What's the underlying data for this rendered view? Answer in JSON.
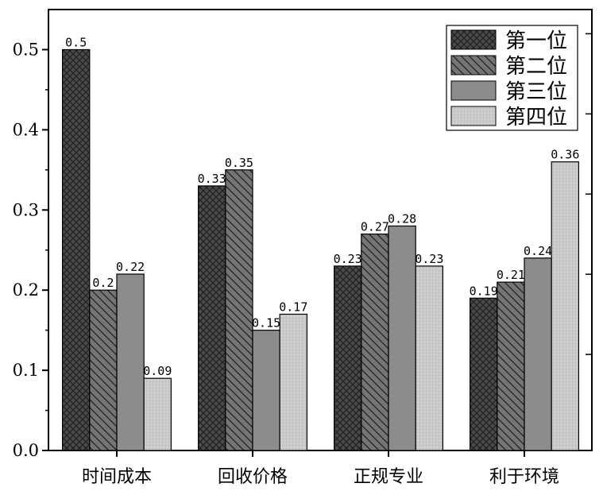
{
  "chart_data": {
    "type": "bar",
    "categories": [
      "时间成本",
      "回收价格",
      "正规专业",
      "利于环境"
    ],
    "series": [
      {
        "name": "第一位",
        "values": [
          0.5,
          0.33,
          0.23,
          0.19
        ],
        "labels": [
          "0.5",
          "0.33",
          "0.23",
          "0.19"
        ],
        "pattern": "crosshatch",
        "color": "#4a4a4a"
      },
      {
        "name": "第二位",
        "values": [
          0.2,
          0.35,
          0.27,
          0.21
        ],
        "labels": [
          "0.2",
          "0.35",
          "0.27",
          "0.21"
        ],
        "pattern": "diagonal",
        "color": "#6e6e6e"
      },
      {
        "name": "第三位",
        "values": [
          0.22,
          0.15,
          0.28,
          0.24
        ],
        "labels": [
          "0.22",
          "0.15",
          "0.28",
          "0.24"
        ],
        "pattern": "solid",
        "color": "#8c8c8c"
      },
      {
        "name": "第四位",
        "values": [
          0.09,
          0.17,
          0.23,
          0.36
        ],
        "labels": [
          "0.09",
          "0.17",
          "0.23",
          "0.36"
        ],
        "pattern": "grid",
        "color": "#c4c4c4"
      }
    ],
    "yticks": [
      "0.0",
      "0.1",
      "0.2",
      "0.3",
      "0.4",
      "0.5"
    ],
    "ylim": [
      0,
      0.55
    ],
    "title": "",
    "xlabel": "",
    "ylabel": "",
    "grid": false,
    "legend_position": "top-right"
  }
}
